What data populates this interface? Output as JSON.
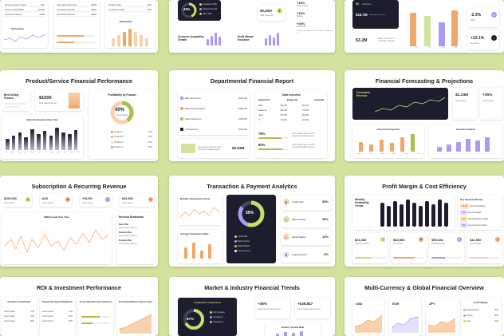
{
  "colors": {
    "background": "#d3e29c",
    "lime": "#a6c24a",
    "orange": "#f0a868",
    "purple": "#a69cf2",
    "dark": "#1d1d2e"
  },
  "row1": {
    "left": {
      "items": [
        [
          "Primary Income Source",
          "18%"
        ],
        [
          "Income Growth Rate",
          "+19.4%"
        ],
        [
          "Investment Return",
          "+18%"
        ]
      ],
      "perf_label": "Performance",
      "mid_rows": [
        [
          "Subscription Revenue",
          "$50M"
        ],
        [
          "Consulting Services",
          "$20M"
        ],
        [
          "Investment Returns",
          "$40M"
        ]
      ],
      "right_rows": [
        [
          "Product Sales",
          "60%"
        ],
        [
          "Investment Gains",
          "20%"
        ]
      ],
      "right_title": "Performance"
    },
    "center": {
      "pct": "43%",
      "legend": [
        "Company A",
        "Company B",
        "Other"
      ],
      "legend_vals": [
        "28%",
        "21%",
        "28%"
      ],
      "stat1": "50,000+",
      "stat1_label": "Total customers",
      "c1_title": "Customer Acquisition Growth",
      "c2_title": "Profit Margin Evolution",
      "v1": "+18%",
      "v1_label": "North America",
      "v2": "+10%",
      "v2_label": "Europe",
      "v3": "+25%",
      "v3_label": "Asia Pacific",
      "note": "Lorem ipsum dolor sit amet, consectetur adipiscing elit."
    },
    "right": {
      "v1": "5K",
      "v1_label": "Customers",
      "v2": "$15.7M",
      "v2_label": "Enterprise accounts",
      "v3": "$3.2M",
      "v3_label": "Total revenue from enterprise customer",
      "bar_labels": [
        "Q1",
        "Q2",
        "Q3",
        "Q4"
      ],
      "stat1": "-2.3%",
      "stat1_label": "SMB",
      "stat2": "+12.1%",
      "stat2_label": "Enterprise"
    }
  },
  "slides": {
    "s1": {
      "title": "Product/Service Financial Performance",
      "best_label": "Best Selling Product",
      "kpi": "$1000",
      "kpi_label": "Total Sales Revenue",
      "profit_title": "Profitability by Product",
      "profit_pct": "40%",
      "profit_sub": "Gross Margin",
      "legend": [
        [
          "Product A",
          "40%"
        ],
        [
          "Product B",
          "25%"
        ],
        [
          "Product C",
          "20%"
        ],
        [
          "Product D",
          "15%"
        ]
      ],
      "chart_title": "Sales Performance Over Time",
      "months": [
        "Jan",
        "Feb",
        "Mar",
        "Apr",
        "May",
        "Jun",
        "Jul",
        "Aug",
        "Sep",
        "Oct",
        "Nov",
        "Dec"
      ]
    },
    "s2": {
      "title": "Departmental Financial Report",
      "depts": [
        [
          "R&D Department",
          "$250,000"
        ],
        [
          "Marketing Department",
          "$180,000"
        ],
        [
          "Sales Department",
          "$150,000"
        ],
        [
          "IT Department",
          "$120,000"
        ]
      ],
      "table_title": "Table Overview",
      "table_head": [
        "Department",
        "Budget ($)",
        "Actual ($)"
      ],
      "table_rows": [
        [
          "R&D",
          "250,000",
          "240,000"
        ],
        [
          "Marketing",
          "180,000",
          "175,000"
        ],
        [
          "Sales",
          "150,000",
          "160,000"
        ],
        [
          "IT",
          "120,000",
          "115,000"
        ]
      ],
      "pct1": "75%",
      "pct2": "80%",
      "kpi": "$2.53M",
      "note": "Lorem ipsum dolor sit amet, consectetur adipiscing elit."
    },
    "s3": {
      "title": "Financial Forecasting & Projections",
      "dark_title": "Forecasted Revenue",
      "kpi1": "$2.24M",
      "kpi2": "+35%",
      "kpi1_label": "Lorem ipsum",
      "kpi2_label": "Lorem ipsum",
      "cash_title": "Cash Flow Projection",
      "cash_months": [
        "Jan",
        "Feb",
        "Mar",
        "Apr",
        "May",
        "Jun"
      ],
      "scen_title": "Scenario Analysis"
    },
    "s4": {
      "title": "Subscription & Recurring Revenue",
      "kpis": [
        [
          "$100,000",
          "Lorem ipsum"
        ],
        [
          "6/10",
          "Lorem ipsum"
        ],
        [
          "+34.5%",
          "Lorem ipsum"
        ],
        [
          "$42,500",
          "Lorem ipsum"
        ]
      ],
      "chart_title": "MRR Growth Over Time",
      "rev_title": "Revenue Breakdown",
      "rev_items": [
        "Basic Plan",
        "Standard Plan",
        "Premium Plan"
      ]
    },
    "s5": {
      "title": "Transaction & Payment Analytics",
      "c1_title": "Monthly Transaction Trends",
      "c2_title": "Average Transaction Value",
      "donut": "55%",
      "donut_legend": [
        "Credit Card",
        "Bank Transfer",
        "Digital Wallets",
        "Cryptocurrency"
      ],
      "methods": [
        [
          "Credit Card",
          "55%"
        ],
        [
          "Bank Transfer",
          "30%"
        ],
        [
          "Digital Wallets",
          "10%"
        ],
        [
          "Cryptocurrency",
          "5%"
        ]
      ]
    },
    "s6": {
      "title": "Profit Margin & Cost Efficiency",
      "trend_title": "Monthly Profitability Trends",
      "metrics_title": "Key Financial Metrics",
      "metrics": [
        [
          "35.2%",
          "Gross Profit Margin"
        ],
        [
          "18%",
          "Net Profit Margin"
        ],
        [
          "15%",
          "Operating Expense Ratio"
        ],
        [
          "25%",
          "Cost-to-Revenue Ratio"
        ]
      ],
      "kpis": [
        [
          "$21,630",
          "Revenue Growth"
        ],
        [
          "$62,800",
          "Net Income"
        ],
        [
          "$55,028",
          "Operating Costs"
        ],
        [
          "$42,500",
          "Cost Savings"
        ]
      ]
    },
    "s7": {
      "title": "ROI & Investment Performance",
      "cols": [
        "Portfolio Growth Rate",
        "Investment Type Breakdown",
        "Asset Allocation & Projections",
        "Forecasted ROI for Next 5 Years"
      ],
      "rows": [
        [
          "Lorem ipsum",
          "12%"
        ],
        [
          "Lorem ipsum",
          "18%"
        ],
        [
          "Lorem ipsum",
          "25%"
        ]
      ]
    },
    "s8": {
      "title": "Market & Industry Financial Trends",
      "dark_title": "Competitor Comparison",
      "donut": "67%",
      "legend": [
        "Our Company",
        "Company A",
        "Company B"
      ],
      "kpi1": "+35%",
      "kpi2": "+$35,847",
      "growth_title": "Industry Growth Rate",
      "note": "Lorem ipsum dolor sit amet"
    },
    "s9": {
      "title": "Multi-Currency & Global Financial Overview",
      "currencies": [
        "USD",
        "EUR",
        "JPY"
      ],
      "profit_title": "Profit Margin",
      "regions": [
        [
          "North America",
          "35%"
        ],
        [
          "Europe",
          "28%"
        ],
        [
          "Asia",
          "22%"
        ]
      ]
    }
  }
}
